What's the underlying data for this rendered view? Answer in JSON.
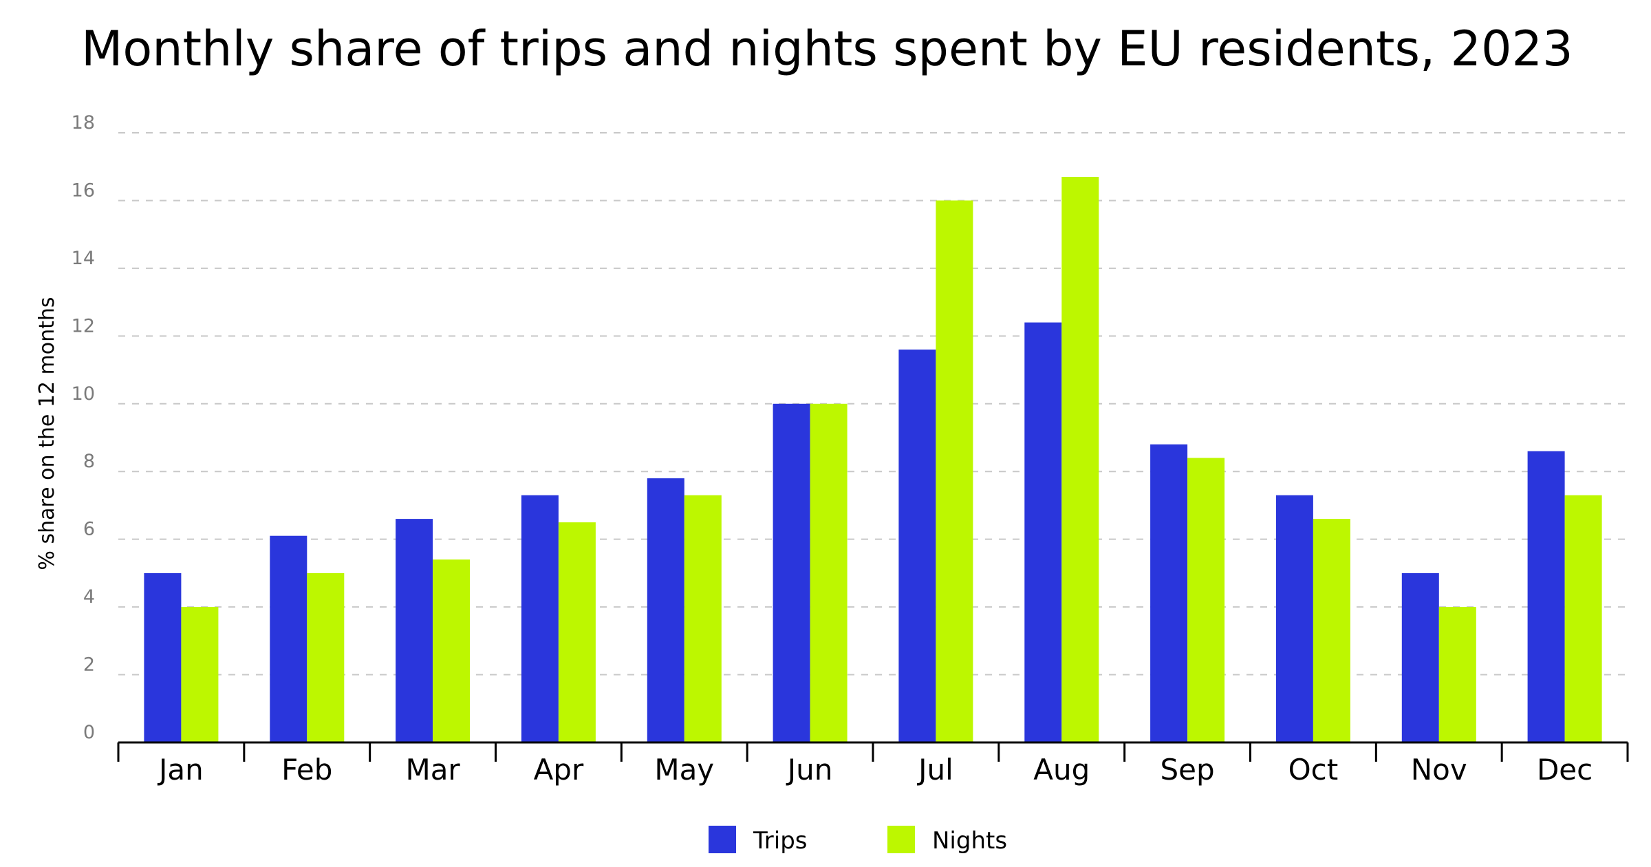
{
  "chart_data": {
    "type": "bar",
    "title": "Monthly share of trips and nights spent by EU residents, 2023",
    "xlabel": "",
    "ylabel": "% share on the 12 months",
    "categories": [
      "Jan",
      "Feb",
      "Mar",
      "Apr",
      "May",
      "Jun",
      "Jul",
      "Aug",
      "Sep",
      "Oct",
      "Nov",
      "Dec"
    ],
    "series": [
      {
        "name": "Trips",
        "color": "#2a36dc",
        "values": [
          5.0,
          6.1,
          6.6,
          7.3,
          7.8,
          10.0,
          11.6,
          12.4,
          8.8,
          7.3,
          5.0,
          8.6
        ]
      },
      {
        "name": "Nights",
        "color": "#bdf700",
        "values": [
          4.0,
          5.0,
          5.4,
          6.5,
          7.3,
          10.0,
          16.0,
          16.7,
          8.4,
          6.6,
          4.0,
          7.3
        ]
      }
    ],
    "ylim": [
      0,
      18
    ],
    "yticks": [
      0,
      2,
      4,
      6,
      8,
      10,
      12,
      14,
      16,
      18
    ],
    "grid": true,
    "legend_position": "bottom-center"
  }
}
